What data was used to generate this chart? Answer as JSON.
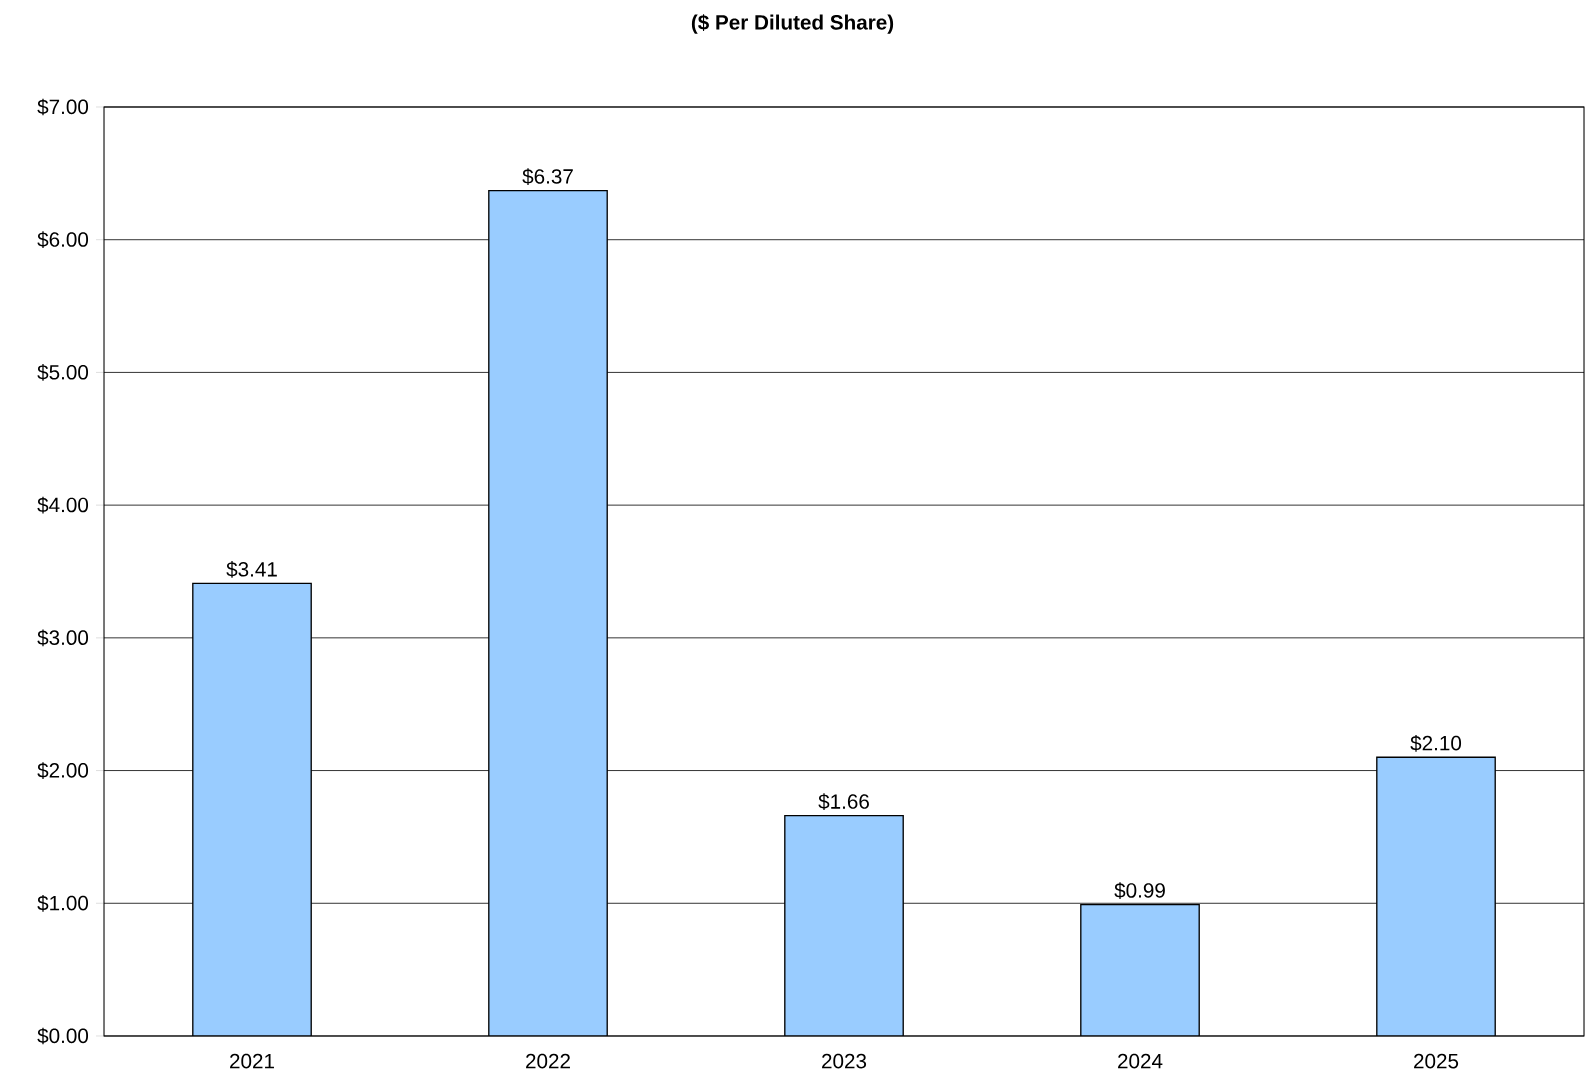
{
  "chart_data": {
    "type": "bar",
    "title": "($ Per Diluted Share)",
    "categories": [
      "2021",
      "2022",
      "2023",
      "2024",
      "2025"
    ],
    "values": [
      3.41,
      6.37,
      1.66,
      0.99,
      2.1
    ],
    "value_labels": [
      "$3.41",
      "$6.37",
      "$1.66",
      "$0.99",
      "$2.10"
    ],
    "color": "#99ccff",
    "ylim": [
      0,
      7
    ],
    "yticks": [
      {
        "value": 0,
        "label": "$0.00"
      },
      {
        "value": 1,
        "label": "$1.00"
      },
      {
        "value": 2,
        "label": "$2.00"
      },
      {
        "value": 3,
        "label": "$3.00"
      },
      {
        "value": 4,
        "label": "$4.00"
      },
      {
        "value": 5,
        "label": "$5.00"
      },
      {
        "value": 6,
        "label": "$6.00"
      },
      {
        "value": 7,
        "label": "$7.00"
      }
    ],
    "grid": "y"
  }
}
